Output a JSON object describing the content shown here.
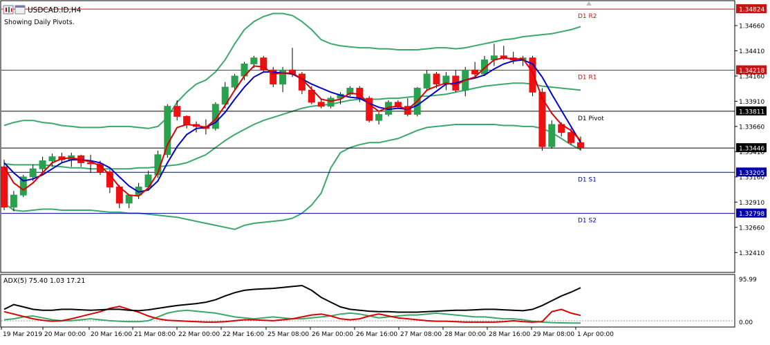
{
  "window": {
    "title": "USDCAD.ID,H4",
    "subtitle": "Showing Daily Pivots."
  },
  "price_axis": {
    "ticks": [
      "1.34660",
      "1.34410",
      "1.34160",
      "1.33910",
      "1.33660",
      "1.33410",
      "1.33160",
      "1.32910",
      "1.32660",
      "1.32410"
    ],
    "tick_values": [
      1.3466,
      1.3441,
      1.3416,
      1.3391,
      1.3366,
      1.3341,
      1.3316,
      1.3291,
      1.3266,
      1.3241
    ],
    "range": [
      1.3222,
      1.349
    ]
  },
  "pivots": [
    {
      "label": "D1 R2",
      "value": 1.34824,
      "value_text": "1.34824",
      "color": "#cc1111"
    },
    {
      "label": "D1 R1",
      "value": 1.34218,
      "value_text": "1.34218",
      "color": "#cc1111"
    },
    {
      "label": "D1 Pivot",
      "value": 1.33811,
      "value_text": "1.33811",
      "color": "#000000"
    },
    {
      "label": "D1 S1",
      "value": 1.33205,
      "value_text": "1.33205",
      "color": "#0000aa"
    },
    {
      "label": "D1 S2",
      "value": 1.32798,
      "value_text": "1.32798",
      "color": "#0000aa"
    }
  ],
  "current_price": {
    "value": 1.33446,
    "value_text": "1.33446"
  },
  "time_axis": [
    "19 Mar 2019",
    "20 Mar 00:00",
    "20 Mar 16:00",
    "21 Mar 08:00",
    "22 Mar 00:00",
    "22 Mar 16:00",
    "25 Mar 08:00",
    "26 Mar 00:00",
    "26 Mar 16:00",
    "27 Mar 08:00",
    "28 Mar 00:00",
    "28 Mar 16:00",
    "29 Mar 08:00",
    "1 Apr 00:00"
  ],
  "adx_panel": {
    "label": "ADX(5) 75.40 1.03 17.21",
    "ticks": [
      "95.99",
      "0.00"
    ],
    "tick_values": [
      95.99,
      0
    ]
  },
  "chart_data": [
    {
      "type": "candlestick",
      "symbol": "USDCAD.ID",
      "timeframe": "H4",
      "ylim": [
        1.3222,
        1.349
      ],
      "candles": [
        [
          1.3326,
          1.3333,
          1.3283,
          1.3286
        ],
        [
          1.3286,
          1.3302,
          1.3282,
          1.3298
        ],
        [
          1.3298,
          1.3318,
          1.3296,
          1.3316
        ],
        [
          1.3316,
          1.3328,
          1.3312,
          1.3324
        ],
        [
          1.3324,
          1.3336,
          1.3318,
          1.3332
        ],
        [
          1.3332,
          1.3339,
          1.3326,
          1.3336
        ],
        [
          1.3336,
          1.334,
          1.333,
          1.3333
        ],
        [
          1.3333,
          1.334,
          1.3326,
          1.3337
        ],
        [
          1.3337,
          1.3338,
          1.3326,
          1.333
        ],
        [
          1.333,
          1.3338,
          1.332,
          1.3329
        ],
        [
          1.3329,
          1.3332,
          1.3318,
          1.3321
        ],
        [
          1.3321,
          1.3323,
          1.33,
          1.3306
        ],
        [
          1.3306,
          1.3308,
          1.3285,
          1.329
        ],
        [
          1.329,
          1.3298,
          1.3285,
          1.3298
        ],
        [
          1.3298,
          1.331,
          1.3294,
          1.3306
        ],
        [
          1.3306,
          1.3322,
          1.3302,
          1.3318
        ],
        [
          1.3318,
          1.3342,
          1.3315,
          1.3338
        ],
        [
          1.3338,
          1.3388,
          1.3335,
          1.3386
        ],
        [
          1.3386,
          1.3392,
          1.3372,
          1.3376
        ],
        [
          1.3376,
          1.3377,
          1.3364,
          1.3368
        ],
        [
          1.3368,
          1.3371,
          1.336,
          1.3366
        ],
        [
          1.3366,
          1.3373,
          1.3358,
          1.3364
        ],
        [
          1.3364,
          1.339,
          1.3362,
          1.3388
        ],
        [
          1.3388,
          1.341,
          1.3384,
          1.3405
        ],
        [
          1.3405,
          1.3418,
          1.3402,
          1.3416
        ],
        [
          1.3416,
          1.343,
          1.3412,
          1.3428
        ],
        [
          1.3428,
          1.3436,
          1.3424,
          1.3434
        ],
        [
          1.3434,
          1.3436,
          1.342,
          1.3422
        ],
        [
          1.3422,
          1.3425,
          1.3405,
          1.3408
        ],
        [
          1.3408,
          1.3425,
          1.34,
          1.3422
        ],
        [
          1.3422,
          1.3444,
          1.3415,
          1.3418
        ],
        [
          1.3418,
          1.342,
          1.3398,
          1.3402
        ],
        [
          1.3402,
          1.3406,
          1.3388,
          1.339
        ],
        [
          1.339,
          1.3394,
          1.3384,
          1.3386
        ],
        [
          1.3386,
          1.3396,
          1.3384,
          1.3394
        ],
        [
          1.3394,
          1.34,
          1.3388,
          1.3398
        ],
        [
          1.3398,
          1.3406,
          1.3396,
          1.3404
        ],
        [
          1.3404,
          1.3406,
          1.339,
          1.3394
        ],
        [
          1.3394,
          1.3396,
          1.337,
          1.3372
        ],
        [
          1.3372,
          1.338,
          1.3368,
          1.3378
        ],
        [
          1.3378,
          1.3392,
          1.3376,
          1.339
        ],
        [
          1.339,
          1.3392,
          1.3384,
          1.3386
        ],
        [
          1.3386,
          1.3394,
          1.3376,
          1.3378
        ],
        [
          1.3378,
          1.3405,
          1.3376,
          1.3404
        ],
        [
          1.3404,
          1.3422,
          1.3402,
          1.3418
        ],
        [
          1.3418,
          1.342,
          1.3404,
          1.3408
        ],
        [
          1.3408,
          1.342,
          1.3402,
          1.3416
        ],
        [
          1.3416,
          1.3422,
          1.34,
          1.3402
        ],
        [
          1.3402,
          1.3425,
          1.3396,
          1.3422
        ],
        [
          1.3422,
          1.343,
          1.3414,
          1.3418
        ],
        [
          1.3418,
          1.3436,
          1.3416,
          1.3432
        ],
        [
          1.3432,
          1.3448,
          1.3426,
          1.3436
        ],
        [
          1.3436,
          1.3446,
          1.3432,
          1.3434
        ],
        [
          1.3434,
          1.344,
          1.3428,
          1.3432
        ],
        [
          1.3432,
          1.3436,
          1.3426,
          1.3434
        ],
        [
          1.3434,
          1.3436,
          1.3396,
          1.34
        ],
        [
          1.34,
          1.3404,
          1.3342,
          1.3346
        ],
        [
          1.3346,
          1.3372,
          1.3344,
          1.3368
        ],
        [
          1.3368,
          1.337,
          1.3356,
          1.336
        ],
        [
          1.336,
          1.3364,
          1.3348,
          1.335
        ],
        [
          1.335,
          1.3356,
          1.3342,
          1.3345
        ]
      ],
      "series": [
        {
          "name": "blue MA",
          "color": "#0000cc",
          "values": [
            1.333,
            1.332,
            1.3312,
            1.3314,
            1.3318,
            1.3324,
            1.333,
            1.3333,
            1.3333,
            1.3332,
            1.333,
            1.3325,
            1.3316,
            1.3307,
            1.3301,
            1.3303,
            1.3312,
            1.333,
            1.3346,
            1.3358,
            1.3364,
            1.3365,
            1.337,
            1.338,
            1.3393,
            1.3405,
            1.3415,
            1.342,
            1.342,
            1.3419,
            1.3418,
            1.3413,
            1.3408,
            1.3404,
            1.34,
            1.3397,
            1.3395,
            1.3394,
            1.3389,
            1.3385,
            1.3383,
            1.3384,
            1.3383,
            1.3387,
            1.3394,
            1.3401,
            1.3408,
            1.3409,
            1.3412,
            1.3414,
            1.3417,
            1.3423,
            1.3428,
            1.3431,
            1.3432,
            1.3428,
            1.3415,
            1.3398,
            1.3382,
            1.3366,
            1.335
          ]
        },
        {
          "name": "red MA",
          "color": "#dd0000",
          "values": [
            1.3326,
            1.331,
            1.3303,
            1.331,
            1.332,
            1.333,
            1.3334,
            1.3335,
            1.3333,
            1.3331,
            1.3327,
            1.3318,
            1.3306,
            1.3298,
            1.3297,
            1.3305,
            1.332,
            1.3348,
            1.3365,
            1.3368,
            1.3367,
            1.3365,
            1.3373,
            1.3387,
            1.3402,
            1.3416,
            1.3426,
            1.3425,
            1.3418,
            1.3419,
            1.3419,
            1.3413,
            1.3403,
            1.3393,
            1.3391,
            1.3393,
            1.3399,
            1.3398,
            1.3388,
            1.3381,
            1.3385,
            1.3386,
            1.3383,
            1.3391,
            1.3402,
            1.3406,
            1.3409,
            1.3407,
            1.3412,
            1.3415,
            1.3424,
            1.3432,
            1.3434,
            1.3433,
            1.3433,
            1.342,
            1.3394,
            1.3379,
            1.3368,
            1.3362,
            1.3352
          ]
        },
        {
          "name": "green upper band",
          "color": "#3aa86b",
          "values": [
            1.3367,
            1.337,
            1.3372,
            1.3372,
            1.337,
            1.3369,
            1.3367,
            1.3366,
            1.3365,
            1.3365,
            1.3365,
            1.3366,
            1.3366,
            1.3366,
            1.3365,
            1.3364,
            1.3366,
            1.3375,
            1.339,
            1.34,
            1.3408,
            1.3412,
            1.342,
            1.3432,
            1.3448,
            1.3462,
            1.347,
            1.3475,
            1.3478,
            1.3478,
            1.3476,
            1.347,
            1.3462,
            1.3452,
            1.3448,
            1.3446,
            1.3445,
            1.3444,
            1.3444,
            1.3443,
            1.3443,
            1.3442,
            1.3442,
            1.3442,
            1.3443,
            1.3444,
            1.3444,
            1.3443,
            1.3444,
            1.3446,
            1.3448,
            1.345,
            1.3452,
            1.3453,
            1.3455,
            1.3456,
            1.3457,
            1.3458,
            1.346,
            1.3462,
            1.3465
          ]
        },
        {
          "name": "green middle band",
          "color": "#3aa86b",
          "values": [
            1.3329,
            1.3328,
            1.3328,
            1.3328,
            1.3328,
            1.3327,
            1.3326,
            1.3325,
            1.3325,
            1.3324,
            1.3324,
            1.3324,
            1.3324,
            1.3324,
            1.3325,
            1.3325,
            1.3326,
            1.3327,
            1.3328,
            1.333,
            1.3334,
            1.3338,
            1.3345,
            1.3352,
            1.3358,
            1.3363,
            1.3368,
            1.3372,
            1.3375,
            1.3378,
            1.3381,
            1.3384,
            1.3386,
            1.3387,
            1.3388,
            1.339,
            1.3392,
            1.3393,
            1.3393,
            1.3393,
            1.3394,
            1.3394,
            1.3395,
            1.3396,
            1.3396,
            1.3397,
            1.3398,
            1.34,
            1.3402,
            1.3404,
            1.3406,
            1.3407,
            1.3408,
            1.3409,
            1.3409,
            1.3408,
            1.3406,
            1.3405,
            1.3404,
            1.3403,
            1.3402
          ]
        },
        {
          "name": "green lower band",
          "color": "#3aa86b",
          "values": [
            1.329,
            1.3283,
            1.3282,
            1.3283,
            1.3284,
            1.3284,
            1.3283,
            1.3283,
            1.3283,
            1.3283,
            1.3282,
            1.3281,
            1.3281,
            1.328,
            1.328,
            1.3279,
            1.3278,
            1.3277,
            1.3276,
            1.3274,
            1.3272,
            1.327,
            1.3268,
            1.3266,
            1.3264,
            1.3268,
            1.327,
            1.3271,
            1.3272,
            1.3273,
            1.3275,
            1.328,
            1.3288,
            1.33,
            1.3325,
            1.334,
            1.3345,
            1.3348,
            1.335,
            1.335,
            1.3352,
            1.3354,
            1.3358,
            1.3362,
            1.3365,
            1.3366,
            1.3367,
            1.3368,
            1.3368,
            1.3368,
            1.3368,
            1.3368,
            1.3367,
            1.3367,
            1.3366,
            1.3366,
            1.3364,
            1.336,
            1.3354,
            1.3348,
            1.3343
          ]
        }
      ]
    },
    {
      "type": "line",
      "indicator": "ADX(5)",
      "ylim": [
        0,
        95.99
      ],
      "series": [
        {
          "name": "ADX",
          "color": "#000000",
          "values": [
            30,
            40,
            35,
            30,
            28,
            28,
            30,
            30,
            29,
            28,
            29,
            30,
            30,
            28,
            27,
            29,
            32,
            35,
            38,
            40,
            42,
            45,
            50,
            58,
            65,
            70,
            72,
            73,
            74,
            76,
            78,
            80,
            70,
            55,
            45,
            35,
            30,
            28,
            26,
            25,
            25,
            24,
            24,
            24,
            25,
            26,
            27,
            28,
            28,
            29,
            30,
            30,
            29,
            28,
            27,
            30,
            38,
            48,
            58,
            66,
            75.4
          ]
        },
        {
          "name": "+DI",
          "color": "#dd0000",
          "values": [
            25,
            20,
            15,
            10,
            7,
            5,
            6,
            10,
            15,
            20,
            25,
            32,
            36,
            30,
            24,
            16,
            10,
            7,
            6,
            5,
            4,
            3,
            3,
            4,
            6,
            8,
            8,
            7,
            6,
            8,
            10,
            14,
            18,
            20,
            16,
            10,
            8,
            10,
            16,
            20,
            16,
            12,
            10,
            8,
            6,
            5,
            5,
            4,
            3,
            3,
            3,
            3,
            4,
            6,
            4,
            3,
            4,
            25,
            30,
            22,
            17.2
          ]
        },
        {
          "name": "-DI",
          "color": "#3aa86b",
          "values": [
            8,
            10,
            14,
            16,
            12,
            8,
            6,
            6,
            8,
            10,
            8,
            6,
            5,
            4,
            4,
            6,
            14,
            22,
            26,
            28,
            26,
            24,
            22,
            18,
            14,
            12,
            10,
            12,
            14,
            12,
            10,
            10,
            12,
            14,
            16,
            20,
            22,
            20,
            16,
            12,
            14,
            16,
            18,
            18,
            20,
            22,
            20,
            18,
            16,
            14,
            14,
            12,
            10,
            10,
            8,
            5,
            3,
            2,
            1.5,
            1.2,
            1.03
          ]
        }
      ]
    }
  ]
}
